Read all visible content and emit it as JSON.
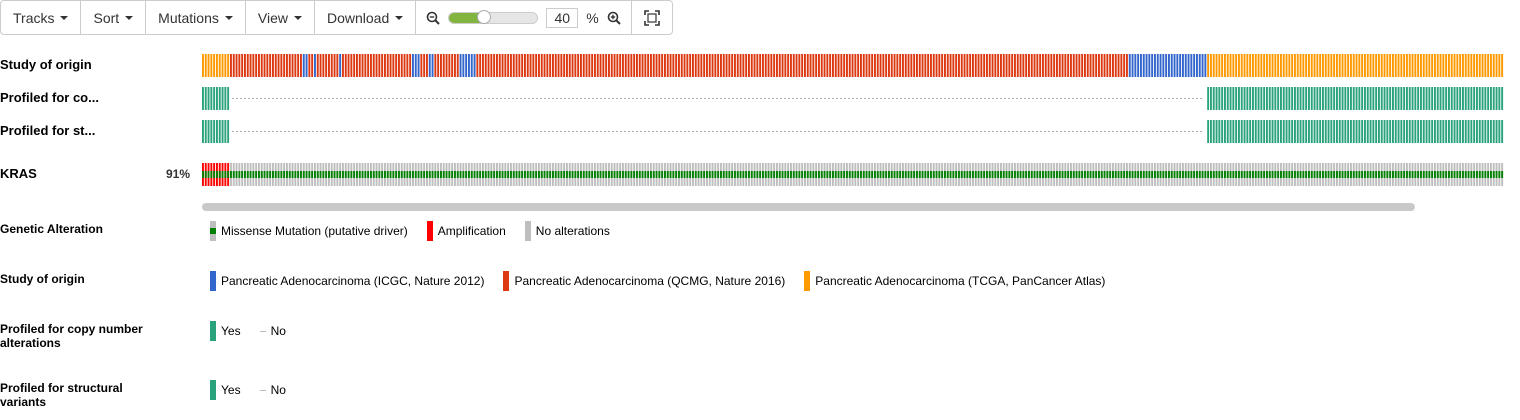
{
  "toolbar": {
    "menus": [
      {
        "label": "Tracks"
      },
      {
        "label": "Sort"
      },
      {
        "label": "Mutations"
      },
      {
        "label": "View"
      },
      {
        "label": "Download"
      }
    ],
    "zoom_value": "40",
    "zoom_unit": "%",
    "zoom_slider_fraction": 0.4
  },
  "tracks": {
    "study_label": "Study of origin",
    "cna_label": "Profiled for co...",
    "sv_label": "Profiled for st...",
    "gene_label": "KRAS",
    "gene_pct": "91%"
  },
  "colors": {
    "icgc": "#3366cc",
    "qcmg": "#dc3912",
    "tcga": "#ff9900",
    "profiled": "#2aa27c",
    "amplification": "#ff0000",
    "missense_driver": "#008000",
    "no_alteration": "#bebebe"
  },
  "legend": {
    "genetic": {
      "title": "Genetic Alteration",
      "items": [
        "Missense Mutation (putative driver)",
        "Amplification",
        "No alterations"
      ]
    },
    "study": {
      "title": "Study of origin",
      "items": [
        "Pancreatic Adenocarcinoma (ICGC, Nature 2012)",
        "Pancreatic Adenocarcinoma (QCMG, Nature 2016)",
        "Pancreatic Adenocarcinoma (TCGA, PanCancer Atlas)"
      ]
    },
    "cna": {
      "title": "Profiled for copy number alterations",
      "items": [
        "Yes",
        "No"
      ]
    },
    "sv": {
      "title": "Profiled for structural variants",
      "items": [
        "Yes",
        "No"
      ]
    }
  }
}
